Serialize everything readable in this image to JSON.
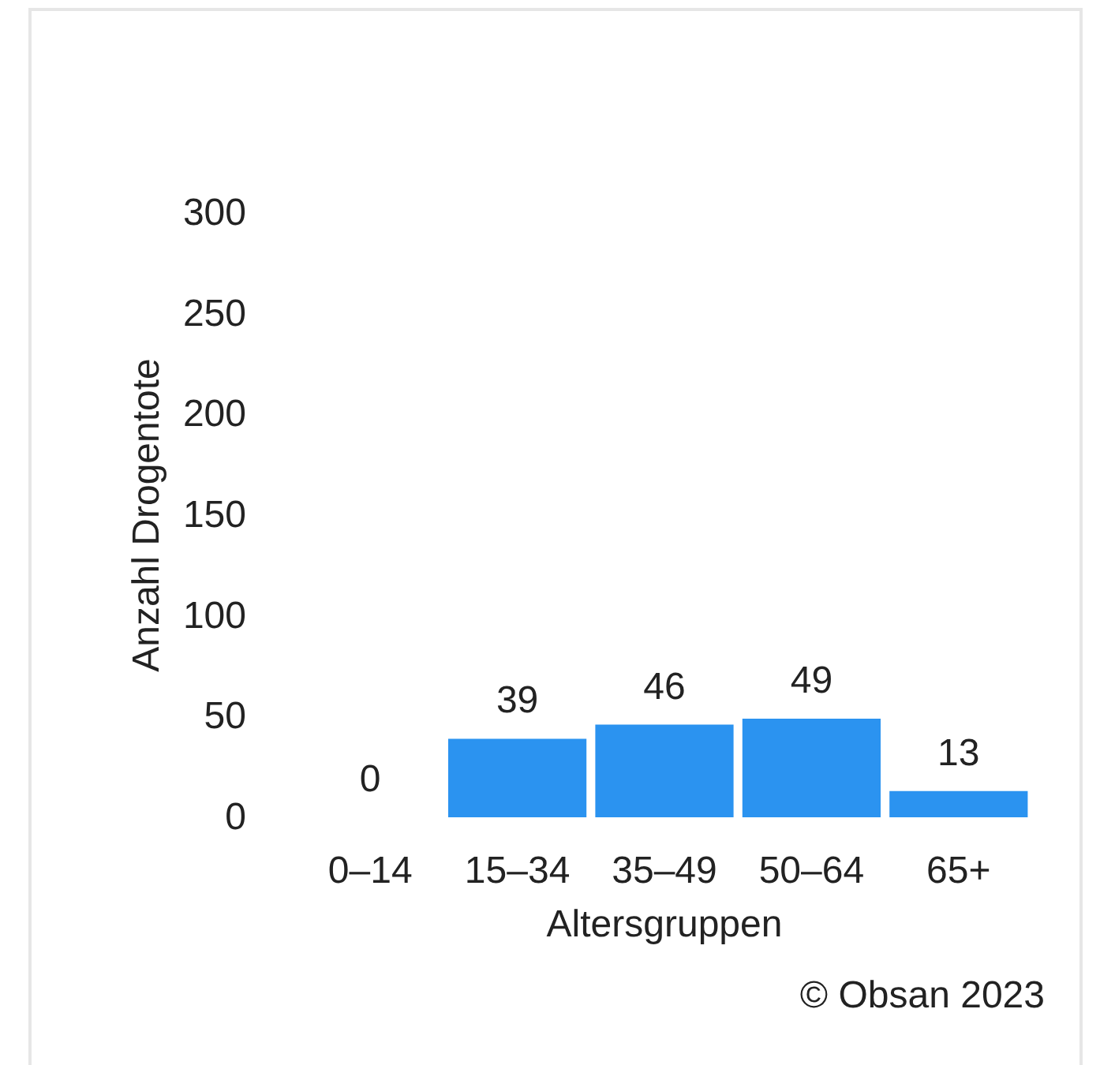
{
  "chart_data": {
    "type": "bar",
    "xlabel": "Altersgruppen",
    "ylabel": "Anzahl Drogentote",
    "categories": [
      "0–14",
      "15–34",
      "35–49",
      "50–64",
      "65+"
    ],
    "values": [
      0,
      39,
      46,
      49,
      13
    ],
    "color": "#2b93f0",
    "ylim": [
      0,
      300
    ],
    "yticks": [
      0,
      50,
      100,
      150,
      200,
      250,
      300
    ],
    "grid": false,
    "data_labels": true,
    "annotations": [
      "© Obsan 2023"
    ]
  }
}
